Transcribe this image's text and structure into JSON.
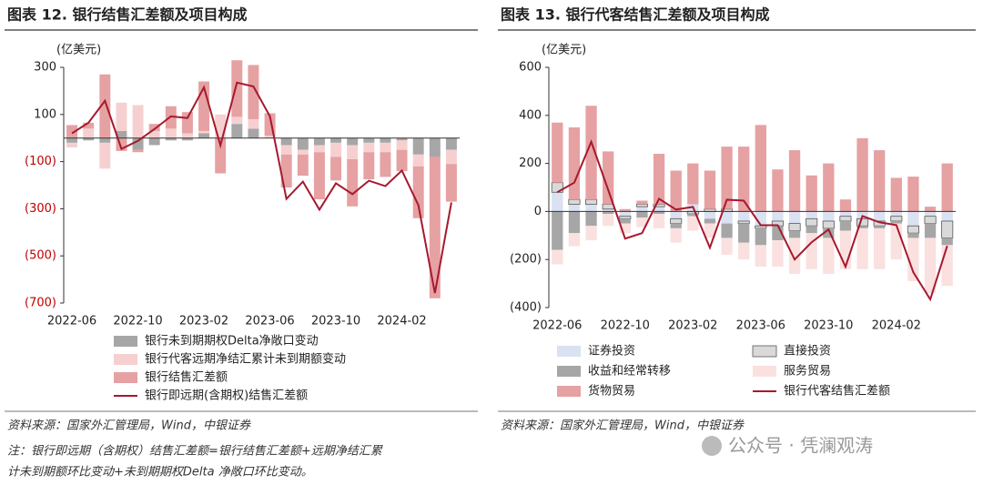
{
  "chart_data": [
    {
      "type": "bar",
      "title": "图表 12. 银行结售汇差额及项目构成",
      "y_label": "(亿美元)",
      "categories": [
        "2022-06",
        null,
        null,
        null,
        "2022-10",
        null,
        null,
        null,
        "2023-02",
        null,
        null,
        null,
        "2023-06",
        null,
        null,
        null,
        "2023-10",
        null,
        null,
        null,
        "2024-02",
        null,
        null,
        null
      ],
      "ylim": [
        -700,
        300
      ],
      "yticks": [
        300,
        100,
        {
          "value": -100,
          "label": "(100)"
        },
        {
          "value": -300,
          "label": "(300)"
        },
        {
          "value": -500,
          "label": "(500)"
        },
        {
          "value": -700,
          "label": "(700)"
        }
      ],
      "ytick_negative_color": "#c00000",
      "series": [
        {
          "name": "银行未到期期权Delta净敞口变动",
          "type": "bar",
          "color": "#a6a6a6",
          "values": [
            -20,
            -10,
            -20,
            30,
            -50,
            -30,
            -10,
            -10,
            20,
            0,
            60,
            40,
            0,
            -30,
            -50,
            -30,
            -20,
            -30,
            -20,
            -20,
            -10,
            -70,
            -80,
            -50
          ]
        },
        {
          "name": "银行代客远期净结汇累计未到期额变动",
          "type": "bar",
          "color": "#f6d0d0",
          "values": [
            -20,
            40,
            -110,
            120,
            140,
            30,
            40,
            20,
            10,
            100,
            30,
            40,
            10,
            -40,
            -20,
            -30,
            -60,
            -60,
            -40,
            -40,
            -40,
            -50,
            0,
            -60
          ]
        },
        {
          "name": "银行结售汇差额",
          "type": "bar",
          "color": "#e6a1a3",
          "values": [
            55,
            25,
            270,
            -55,
            -10,
            30,
            95,
            90,
            210,
            -150,
            240,
            230,
            95,
            -140,
            -90,
            -200,
            -100,
            -200,
            -115,
            -105,
            -90,
            -220,
            -600,
            -160
          ]
        },
        {
          "name": "银行即远期(含期权)结售汇差额",
          "type": "line",
          "color": "#a6192e",
          "values": [
            20,
            65,
            158,
            -46,
            -12,
            38,
            92,
            85,
            215,
            -31,
            235,
            219,
            92,
            -258,
            -185,
            -304,
            -192,
            -238,
            -181,
            -204,
            -138,
            -285,
            -658,
            -273
          ]
        }
      ],
      "source": "资料来源：国家外汇管理局，Wind，中银证券",
      "note": [
        "注：银行即远期（含期权）结售汇差额=银行结售汇差额+远期净结汇累",
        "计未到期额环比变动+未到期期权Delta 净敞口环比变动。"
      ]
    },
    {
      "type": "bar",
      "title": "图表 13. 银行代客结售汇差额及项目构成",
      "y_label": "(亿美元)",
      "categories": [
        "2022-06",
        null,
        null,
        null,
        "2022-10",
        null,
        null,
        null,
        "2023-02",
        null,
        null,
        null,
        "2023-06",
        null,
        null,
        null,
        "2023-10",
        null,
        null,
        null,
        "2024-02",
        null,
        null,
        null
      ],
      "ylim": [
        -400,
        600
      ],
      "yticks": [
        600,
        400,
        200,
        0,
        {
          "value": -200,
          "label": "(200)"
        },
        {
          "value": -400,
          "label": "(400)"
        }
      ],
      "series": [
        {
          "name": "证券投资",
          "type": "bar",
          "color": "#d9e1f2",
          "values": [
            80,
            30,
            30,
            10,
            -20,
            20,
            20,
            -30,
            30,
            -30,
            -50,
            -40,
            -60,
            -40,
            -50,
            -30,
            -40,
            -20,
            -30,
            -40,
            -20,
            -60,
            -20,
            -40
          ]
        },
        {
          "name": "直接投资",
          "type": "bar",
          "color": "#d9d9d9",
          "stroke": "#595959",
          "values": [
            40,
            20,
            20,
            20,
            -10,
            10,
            10,
            -20,
            -10,
            10,
            10,
            -10,
            -10,
            -20,
            -30,
            -30,
            -30,
            -20,
            -30,
            -20,
            -20,
            -30,
            -30,
            -70
          ]
        },
        {
          "name": "收益和经常转移",
          "type": "bar",
          "color": "#a6a6a6",
          "values": [
            -160,
            -90,
            -60,
            -10,
            -20,
            -25,
            -10,
            -20,
            -10,
            -20,
            -60,
            -80,
            -70,
            -60,
            -30,
            -30,
            -40,
            -40,
            -10,
            -10,
            -10,
            -20,
            -60,
            -30
          ]
        },
        {
          "name": "服务贸易",
          "type": "bar",
          "color": "#fbe0e0",
          "values": [
            -60,
            -55,
            -60,
            -50,
            -40,
            -40,
            -60,
            -60,
            -60,
            -60,
            -70,
            -70,
            -90,
            -110,
            -150,
            -150,
            -150,
            -160,
            -170,
            -170,
            -150,
            -180,
            -230,
            -170
          ]
        },
        {
          "name": "货物贸易",
          "type": "bar",
          "color": "#e6a1a3",
          "values": [
            250,
            300,
            390,
            220,
            10,
            15,
            210,
            170,
            170,
            160,
            260,
            270,
            360,
            175,
            255,
            150,
            200,
            50,
            305,
            255,
            140,
            145,
            20,
            200
          ]
        },
        {
          "name": "银行代客结售汇差额",
          "type": "line",
          "color": "#a6192e",
          "values": [
            80,
            120,
            290,
            90,
            -113,
            -90,
            53,
            8,
            19,
            -151,
            49,
            45,
            -57,
            -57,
            -200,
            -128,
            -75,
            -230,
            -19,
            -45,
            -57,
            -253,
            -366,
            -143
          ]
        }
      ],
      "source": "资料来源：国家外汇管理局，Wind，中银证券"
    }
  ],
  "watermark": "公众号 · 凭澜观涛"
}
